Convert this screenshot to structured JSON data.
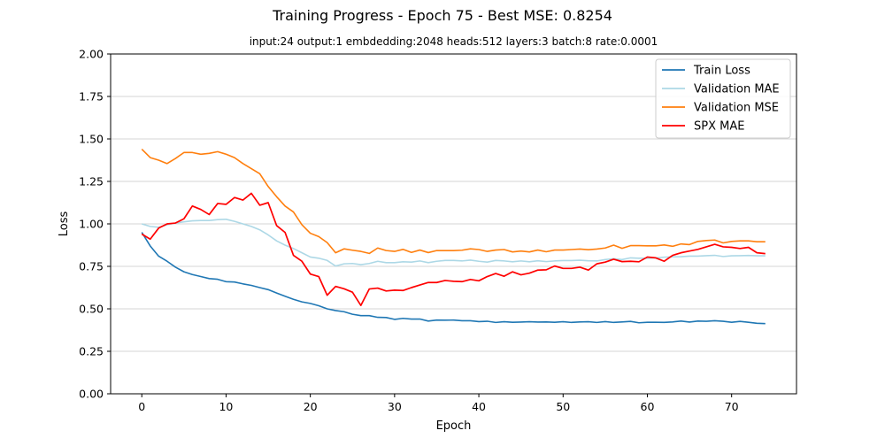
{
  "colors": {
    "train_loss": "#1f77b4",
    "validation_mae": "#add8e6",
    "validation_mse": "#ff7f0e",
    "spx_mae": "#ff0000",
    "grid": "#c8c8c8",
    "axes": "#000000"
  },
  "chart_data": {
    "type": "line",
    "title": "Training Progress - Epoch 75 - Best MSE: 0.8254",
    "subtitle": "input:24 output:1 embdedding:2048 heads:512 layers:3 batch:8 rate:0.0001",
    "xlabel": "Epoch",
    "ylabel": "Loss",
    "xlim": [
      -3.7,
      77.7
    ],
    "ylim": [
      0.0,
      2.0
    ],
    "xticks": [
      0,
      10,
      20,
      30,
      40,
      50,
      60,
      70
    ],
    "yticks": [
      0.0,
      0.25,
      0.5,
      0.75,
      1.0,
      1.25,
      1.5,
      1.75,
      2.0
    ],
    "xtick_labels": [
      "0",
      "10",
      "20",
      "30",
      "40",
      "50",
      "60",
      "70"
    ],
    "ytick_labels": [
      "0.00",
      "0.25",
      "0.50",
      "0.75",
      "1.00",
      "1.25",
      "1.50",
      "1.75",
      "2.00"
    ],
    "grid": "horizontal",
    "legend_position": "top-right",
    "series": [
      {
        "key": "train_loss",
        "name": "Train Loss",
        "values": [
          0.95,
          0.87,
          0.81,
          0.78,
          0.745,
          0.718,
          0.702,
          0.69,
          0.678,
          0.674,
          0.66,
          0.658,
          0.647,
          0.638,
          0.625,
          0.613,
          0.593,
          0.574,
          0.556,
          0.541,
          0.532,
          0.518,
          0.5,
          0.49,
          0.483,
          0.468,
          0.46,
          0.46,
          0.45,
          0.449,
          0.438,
          0.444,
          0.44,
          0.44,
          0.428,
          0.434,
          0.433,
          0.434,
          0.43,
          0.43,
          0.425,
          0.427,
          0.42,
          0.424,
          0.421,
          0.422,
          0.424,
          0.422,
          0.423,
          0.421,
          0.424,
          0.42,
          0.423,
          0.424,
          0.42,
          0.425,
          0.42,
          0.423,
          0.426,
          0.418,
          0.421,
          0.421,
          0.42,
          0.423,
          0.428,
          0.422,
          0.428,
          0.427,
          0.43,
          0.427,
          0.421,
          0.426,
          0.421,
          0.415,
          0.413
        ]
      },
      {
        "key": "validation_mae",
        "name": "Validation MAE",
        "values": [
          1.0,
          0.985,
          0.98,
          0.995,
          1.005,
          1.012,
          1.018,
          1.02,
          1.02,
          1.025,
          1.027,
          1.015,
          1.0,
          0.985,
          0.965,
          0.935,
          0.9,
          0.875,
          0.855,
          0.83,
          0.805,
          0.798,
          0.785,
          0.752,
          0.765,
          0.767,
          0.76,
          0.767,
          0.78,
          0.772,
          0.772,
          0.777,
          0.775,
          0.782,
          0.772,
          0.78,
          0.785,
          0.785,
          0.782,
          0.787,
          0.78,
          0.775,
          0.785,
          0.782,
          0.777,
          0.782,
          0.777,
          0.783,
          0.778,
          0.782,
          0.784,
          0.784,
          0.786,
          0.783,
          0.782,
          0.79,
          0.795,
          0.79,
          0.8,
          0.798,
          0.798,
          0.8,
          0.804,
          0.806,
          0.807,
          0.81,
          0.81,
          0.813,
          0.815,
          0.808,
          0.812,
          0.813,
          0.814,
          0.812,
          0.812
        ]
      },
      {
        "key": "validation_mse",
        "name": "Validation MSE",
        "values": [
          1.44,
          1.39,
          1.375,
          1.355,
          1.385,
          1.42,
          1.42,
          1.41,
          1.415,
          1.425,
          1.41,
          1.39,
          1.355,
          1.325,
          1.295,
          1.22,
          1.16,
          1.105,
          1.07,
          0.995,
          0.945,
          0.925,
          0.89,
          0.83,
          0.853,
          0.845,
          0.838,
          0.826,
          0.858,
          0.843,
          0.838,
          0.85,
          0.832,
          0.846,
          0.831,
          0.843,
          0.843,
          0.843,
          0.845,
          0.853,
          0.849,
          0.838,
          0.846,
          0.849,
          0.835,
          0.84,
          0.835,
          0.846,
          0.836,
          0.846,
          0.846,
          0.849,
          0.852,
          0.848,
          0.852,
          0.858,
          0.875,
          0.856,
          0.872,
          0.872,
          0.871,
          0.871,
          0.876,
          0.868,
          0.882,
          0.878,
          0.897,
          0.902,
          0.905,
          0.888,
          0.897,
          0.9,
          0.9,
          0.895,
          0.895
        ]
      },
      {
        "key": "spx_mae",
        "name": "SPX MAE",
        "values": [
          0.94,
          0.91,
          0.975,
          1.0,
          1.005,
          1.03,
          1.105,
          1.085,
          1.055,
          1.12,
          1.115,
          1.155,
          1.14,
          1.18,
          1.11,
          1.125,
          0.99,
          0.95,
          0.815,
          0.78,
          0.705,
          0.69,
          0.58,
          0.632,
          0.618,
          0.598,
          0.52,
          0.617,
          0.622,
          0.605,
          0.61,
          0.608,
          0.625,
          0.64,
          0.655,
          0.655,
          0.667,
          0.662,
          0.66,
          0.673,
          0.665,
          0.69,
          0.708,
          0.692,
          0.718,
          0.7,
          0.71,
          0.728,
          0.73,
          0.752,
          0.738,
          0.738,
          0.745,
          0.728,
          0.765,
          0.775,
          0.792,
          0.778,
          0.78,
          0.777,
          0.805,
          0.8,
          0.78,
          0.815,
          0.83,
          0.84,
          0.85,
          0.865,
          0.88,
          0.865,
          0.862,
          0.855,
          0.862,
          0.83,
          0.825
        ]
      }
    ]
  }
}
